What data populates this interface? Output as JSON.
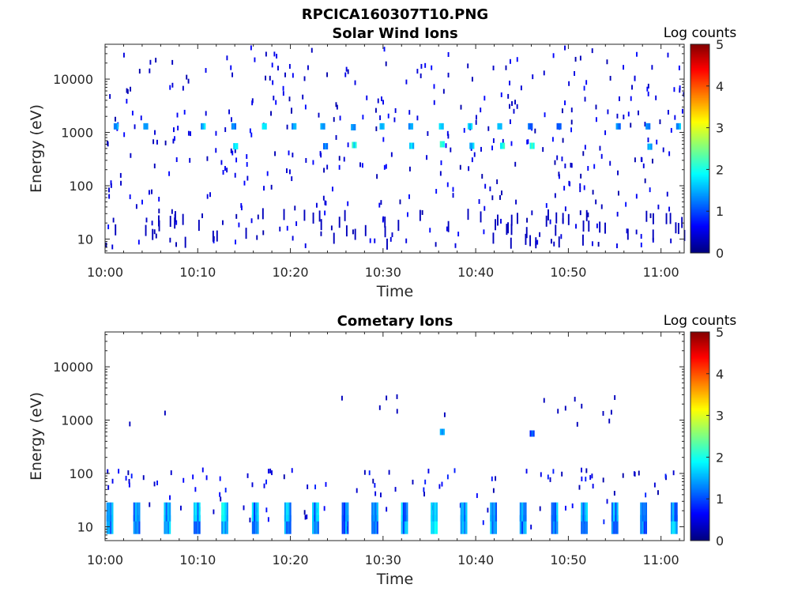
{
  "figure_title": "RPCICA160307T10.PNG",
  "chart_data": [
    {
      "type": "heatmap",
      "title": "Solar Wind Ions",
      "xlabel": "Time",
      "ylabel": "Energy (eV)",
      "x_ticks": [
        "10:00",
        "10:10",
        "10:20",
        "10:30",
        "10:40",
        "10:50",
        "11:00"
      ],
      "x_range_minutes": [
        0,
        62.5
      ],
      "y_ticks": [
        "10",
        "100",
        "1000",
        "10000"
      ],
      "y_scale": "log",
      "y_range": [
        5.5,
        45000
      ],
      "colorbar": {
        "label": "Log counts",
        "ticks": [
          "0",
          "1",
          "2",
          "3",
          "4",
          "5"
        ],
        "range": [
          0,
          5
        ],
        "colormap": "jet"
      },
      "clusters": [
        {
          "t": 1.1,
          "e": 1300,
          "v": 1.7
        },
        {
          "t": 4.3,
          "e": 1300,
          "v": 1.5
        },
        {
          "t": 10.5,
          "e": 1300,
          "v": 1.8
        },
        {
          "t": 13.8,
          "e": 1300,
          "v": 1.7
        },
        {
          "t": 17.1,
          "e": 1300,
          "v": 2.0
        },
        {
          "t": 20.3,
          "e": 1300,
          "v": 1.6
        },
        {
          "t": 23.4,
          "e": 1300,
          "v": 1.5
        },
        {
          "t": 26.7,
          "e": 1250,
          "v": 1.6
        },
        {
          "t": 29.8,
          "e": 1300,
          "v": 1.8
        },
        {
          "t": 32.9,
          "e": 1300,
          "v": 1.7
        },
        {
          "t": 36.2,
          "e": 1300,
          "v": 2.0
        },
        {
          "t": 39.3,
          "e": 1300,
          "v": 1.8
        },
        {
          "t": 42.5,
          "e": 1300,
          "v": 1.7
        },
        {
          "t": 45.8,
          "e": 1300,
          "v": 1.6
        },
        {
          "t": 48.9,
          "e": 1300,
          "v": 1.5
        },
        {
          "t": 55.3,
          "e": 1300,
          "v": 1.6
        },
        {
          "t": 58.5,
          "e": 1300,
          "v": 1.5
        },
        {
          "t": 61.8,
          "e": 1300,
          "v": 1.7
        },
        {
          "t": 14.0,
          "e": 550,
          "v": 2.1
        },
        {
          "t": 23.7,
          "e": 550,
          "v": 1.5
        },
        {
          "t": 26.8,
          "e": 580,
          "v": 2.2
        },
        {
          "t": 33.0,
          "e": 560,
          "v": 2.0
        },
        {
          "t": 36.3,
          "e": 600,
          "v": 2.4
        },
        {
          "t": 39.5,
          "e": 560,
          "v": 1.9
        },
        {
          "t": 42.8,
          "e": 560,
          "v": 2.2
        },
        {
          "t": 46.0,
          "e": 560,
          "v": 2.3
        },
        {
          "t": 58.7,
          "e": 540,
          "v": 1.8
        }
      ]
    },
    {
      "type": "heatmap",
      "title": "Cometary Ions",
      "xlabel": "Time",
      "ylabel": "Energy (eV)",
      "x_ticks": [
        "10:00",
        "10:10",
        "10:20",
        "10:30",
        "10:40",
        "10:50",
        "11:00"
      ],
      "x_range_minutes": [
        0,
        62.5
      ],
      "y_ticks": [
        "10",
        "100",
        "1000",
        "10000"
      ],
      "y_scale": "log",
      "y_range": [
        5.5,
        45000
      ],
      "colorbar": {
        "label": "Log counts",
        "ticks": [
          "0",
          "1",
          "2",
          "3",
          "4",
          "5"
        ],
        "range": [
          0,
          5
        ],
        "colormap": "jet"
      },
      "clusters": [
        {
          "t": 0.4,
          "e": 18,
          "v": 1.9
        },
        {
          "t": 3.3,
          "e": 18,
          "v": 1.8
        },
        {
          "t": 6.6,
          "e": 18,
          "v": 1.9
        },
        {
          "t": 9.8,
          "e": 18,
          "v": 1.8
        },
        {
          "t": 12.8,
          "e": 18,
          "v": 2.0
        },
        {
          "t": 16.1,
          "e": 18,
          "v": 1.8
        },
        {
          "t": 19.6,
          "e": 18,
          "v": 1.9
        },
        {
          "t": 22.6,
          "e": 18,
          "v": 1.8
        },
        {
          "t": 25.8,
          "e": 18,
          "v": 1.7
        },
        {
          "t": 29.0,
          "e": 18,
          "v": 1.7
        },
        {
          "t": 32.2,
          "e": 18,
          "v": 1.8
        },
        {
          "t": 35.4,
          "e": 18,
          "v": 2.0
        },
        {
          "t": 38.6,
          "e": 18,
          "v": 1.8
        },
        {
          "t": 41.8,
          "e": 18,
          "v": 1.8
        },
        {
          "t": 45.0,
          "e": 18,
          "v": 1.8
        },
        {
          "t": 48.4,
          "e": 18,
          "v": 1.8
        },
        {
          "t": 51.6,
          "e": 18,
          "v": 1.9
        },
        {
          "t": 54.9,
          "e": 18,
          "v": 1.8
        },
        {
          "t": 58.0,
          "e": 18,
          "v": 1.7
        },
        {
          "t": 61.3,
          "e": 18,
          "v": 1.8
        },
        {
          "t": 36.3,
          "e": 600,
          "v": 1.6
        },
        {
          "t": 46.0,
          "e": 560,
          "v": 1.3
        }
      ]
    }
  ]
}
